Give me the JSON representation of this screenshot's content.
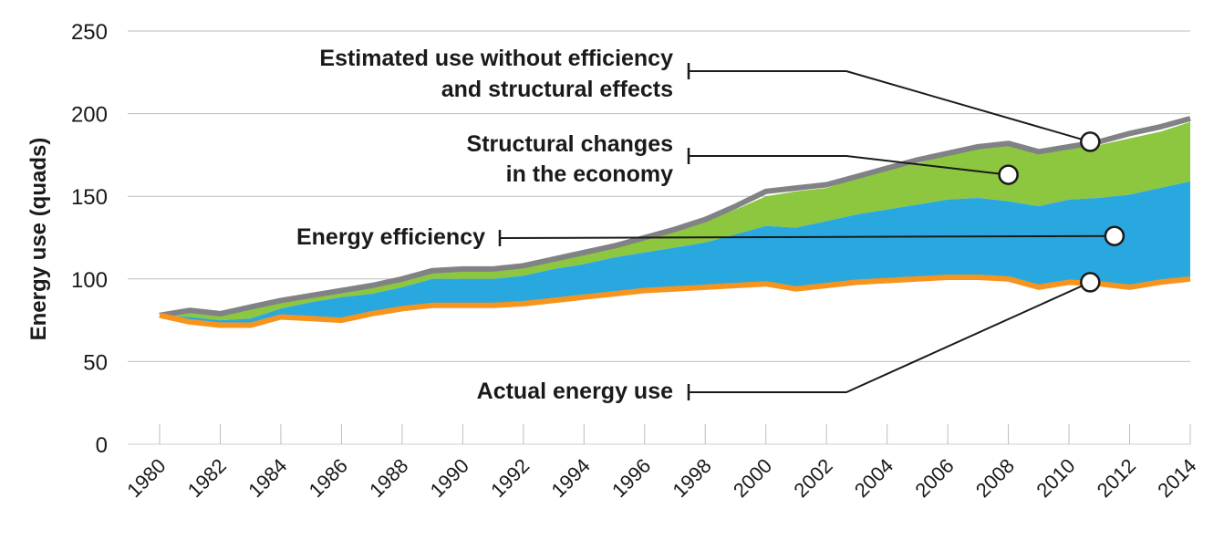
{
  "chart_data": {
    "type": "area",
    "title": "",
    "xlabel": "",
    "ylabel": "Energy use (quads)",
    "ylim": [
      0,
      250
    ],
    "xlim": [
      1980,
      2014
    ],
    "y_ticks": [
      0,
      50,
      100,
      150,
      200,
      250
    ],
    "x_ticks": [
      1980,
      1982,
      1984,
      1986,
      1988,
      1990,
      1992,
      1994,
      1996,
      1998,
      2000,
      2002,
      2004,
      2006,
      2008,
      2010,
      2012,
      2014
    ],
    "x_tick_labels": [
      "1980",
      "1982",
      "1984",
      "1986",
      "1988",
      "1990",
      "1992",
      "1994",
      "1996",
      "1998",
      "2000",
      "2002",
      "2004",
      "2006",
      "2008",
      "2010",
      "2012",
      "2014"
    ],
    "grid": "horizontal",
    "x": [
      1980,
      1981,
      1982,
      1983,
      1984,
      1985,
      1986,
      1987,
      1988,
      1989,
      1990,
      1991,
      1992,
      1993,
      1994,
      1995,
      1996,
      1997,
      1998,
      1999,
      2000,
      2001,
      2002,
      2003,
      2004,
      2005,
      2006,
      2007,
      2008,
      2009,
      2010,
      2011,
      2012,
      2013,
      2014
    ],
    "series": [
      {
        "name": "Actual energy use",
        "color": "#f7941d",
        "values": [
          78,
          74,
          72,
          72,
          77,
          76,
          75,
          79,
          82,
          84,
          84,
          84,
          85,
          87,
          89,
          91,
          93,
          94,
          95,
          96,
          97,
          94,
          96,
          98,
          99,
          100,
          101,
          101,
          100,
          95,
          98,
          97,
          95,
          98,
          100
        ]
      },
      {
        "name": "Energy efficiency",
        "color": "#29a8e0",
        "values": [
          78,
          77,
          75,
          76,
          82,
          86,
          89,
          91,
          95,
          100,
          100,
          100,
          102,
          106,
          109,
          113,
          116,
          119,
          122,
          127,
          132,
          131,
          135,
          139,
          142,
          145,
          148,
          149,
          147,
          144,
          148,
          149,
          151,
          155,
          159
        ]
      },
      {
        "name": "Structural changes in the economy",
        "color": "#8dc63f",
        "values": [
          78,
          80,
          78,
          82,
          86,
          90,
          93,
          96,
          100,
          104,
          105,
          106,
          108,
          112,
          116,
          120,
          124,
          129,
          135,
          142,
          150,
          153,
          155,
          161,
          166,
          170,
          175,
          180,
          181,
          176,
          179,
          181,
          185,
          189,
          195
        ]
      },
      {
        "name": "Estimated use without efficiency and structural effects",
        "color": "#808285",
        "values": [
          78,
          81,
          79,
          83,
          87,
          90,
          93,
          96,
          100,
          105,
          106,
          106,
          108,
          112,
          116,
          120,
          125,
          130,
          136,
          144,
          153,
          155,
          157,
          162,
          167,
          172,
          176,
          180,
          182,
          177,
          180,
          183,
          188,
          192,
          197
        ]
      }
    ],
    "annotations": [
      {
        "lines": [
          "Estimated use without efficiency",
          "and structural effects"
        ],
        "target": {
          "x": 2010.7,
          "y": 183
        }
      },
      {
        "lines": [
          "Structural changes",
          "in the economy"
        ],
        "target": {
          "x": 2008,
          "y": 163
        }
      },
      {
        "lines": [
          "Energy efficiency"
        ],
        "target": {
          "x": 2011.5,
          "y": 126
        }
      },
      {
        "lines": [
          "Actual energy use"
        ],
        "target": {
          "x": 2010.7,
          "y": 98
        }
      }
    ]
  }
}
